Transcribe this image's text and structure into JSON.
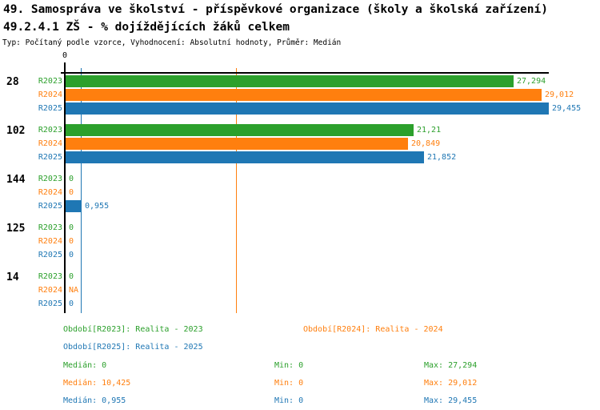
{
  "header": {
    "title_line1": "49. Samospráva ve školství - příspěvkové organizace (školy a školská zařízení)",
    "title_line2": "49.2.4.1 ZŠ - % dojíždějících žáků celkem",
    "meta_line": "Typ: Počítaný podle vzorce, Vyhodnocení: Absolutní hodnoty, Průměr: Medián"
  },
  "colors": {
    "r2023": "#2ca02c",
    "r2024": "#ff7f0e",
    "r2025": "#1f77b4",
    "axis": "#000000"
  },
  "chart_data": {
    "type": "bar",
    "orientation": "horizontal",
    "title": "49.2.4.1 ZŠ - % dojíždějících žáků celkem",
    "categories": [
      "28",
      "102",
      "144",
      "125",
      "14"
    ],
    "series": [
      {
        "name": "R2023",
        "color": "#2ca02c",
        "values": [
          27.294,
          21.21,
          0,
          0,
          0
        ],
        "labels": [
          "27,294",
          "21,21",
          "0",
          "0",
          "0"
        ]
      },
      {
        "name": "R2024",
        "color": "#ff7f0e",
        "values": [
          29.012,
          20.849,
          0,
          0,
          null
        ],
        "labels": [
          "29,012",
          "20,849",
          "0",
          "0",
          "NA"
        ]
      },
      {
        "name": "R2025",
        "color": "#1f77b4",
        "values": [
          29.455,
          21.852,
          0.955,
          0,
          0
        ],
        "labels": [
          "29,455",
          "21,852",
          "0,955",
          "0",
          "0"
        ]
      }
    ],
    "xlim": [
      0,
      29.455
    ],
    "value_axis_zero_label": "0",
    "grid": false,
    "legend_position": "bottom",
    "median_lines": [
      {
        "series": "R2023",
        "value": 0,
        "color": "#2ca02c"
      },
      {
        "series": "R2024",
        "value": 10.425,
        "color": "#ff7f0e"
      },
      {
        "series": "R2025",
        "value": 0.955,
        "color": "#1f77b4"
      }
    ]
  },
  "legend": [
    {
      "label": "Období[R2023]: Realita - 2023",
      "color": "#2ca02c"
    },
    {
      "label": "Období[R2024]: Realita - 2024",
      "color": "#ff7f0e"
    },
    {
      "label": "Období[R2025]: Realita - 2025",
      "color": "#1f77b4"
    }
  ],
  "stats": [
    {
      "median": "Medián: 0",
      "min": "Min: 0",
      "max": "Max: 27,294",
      "color": "#2ca02c"
    },
    {
      "median": "Medián: 10,425",
      "min": "Min: 0",
      "max": "Max: 29,012",
      "color": "#ff7f0e"
    },
    {
      "median": "Medián: 0,955",
      "min": "Min: 0",
      "max": "Max: 29,455",
      "color": "#1f77b4"
    }
  ]
}
